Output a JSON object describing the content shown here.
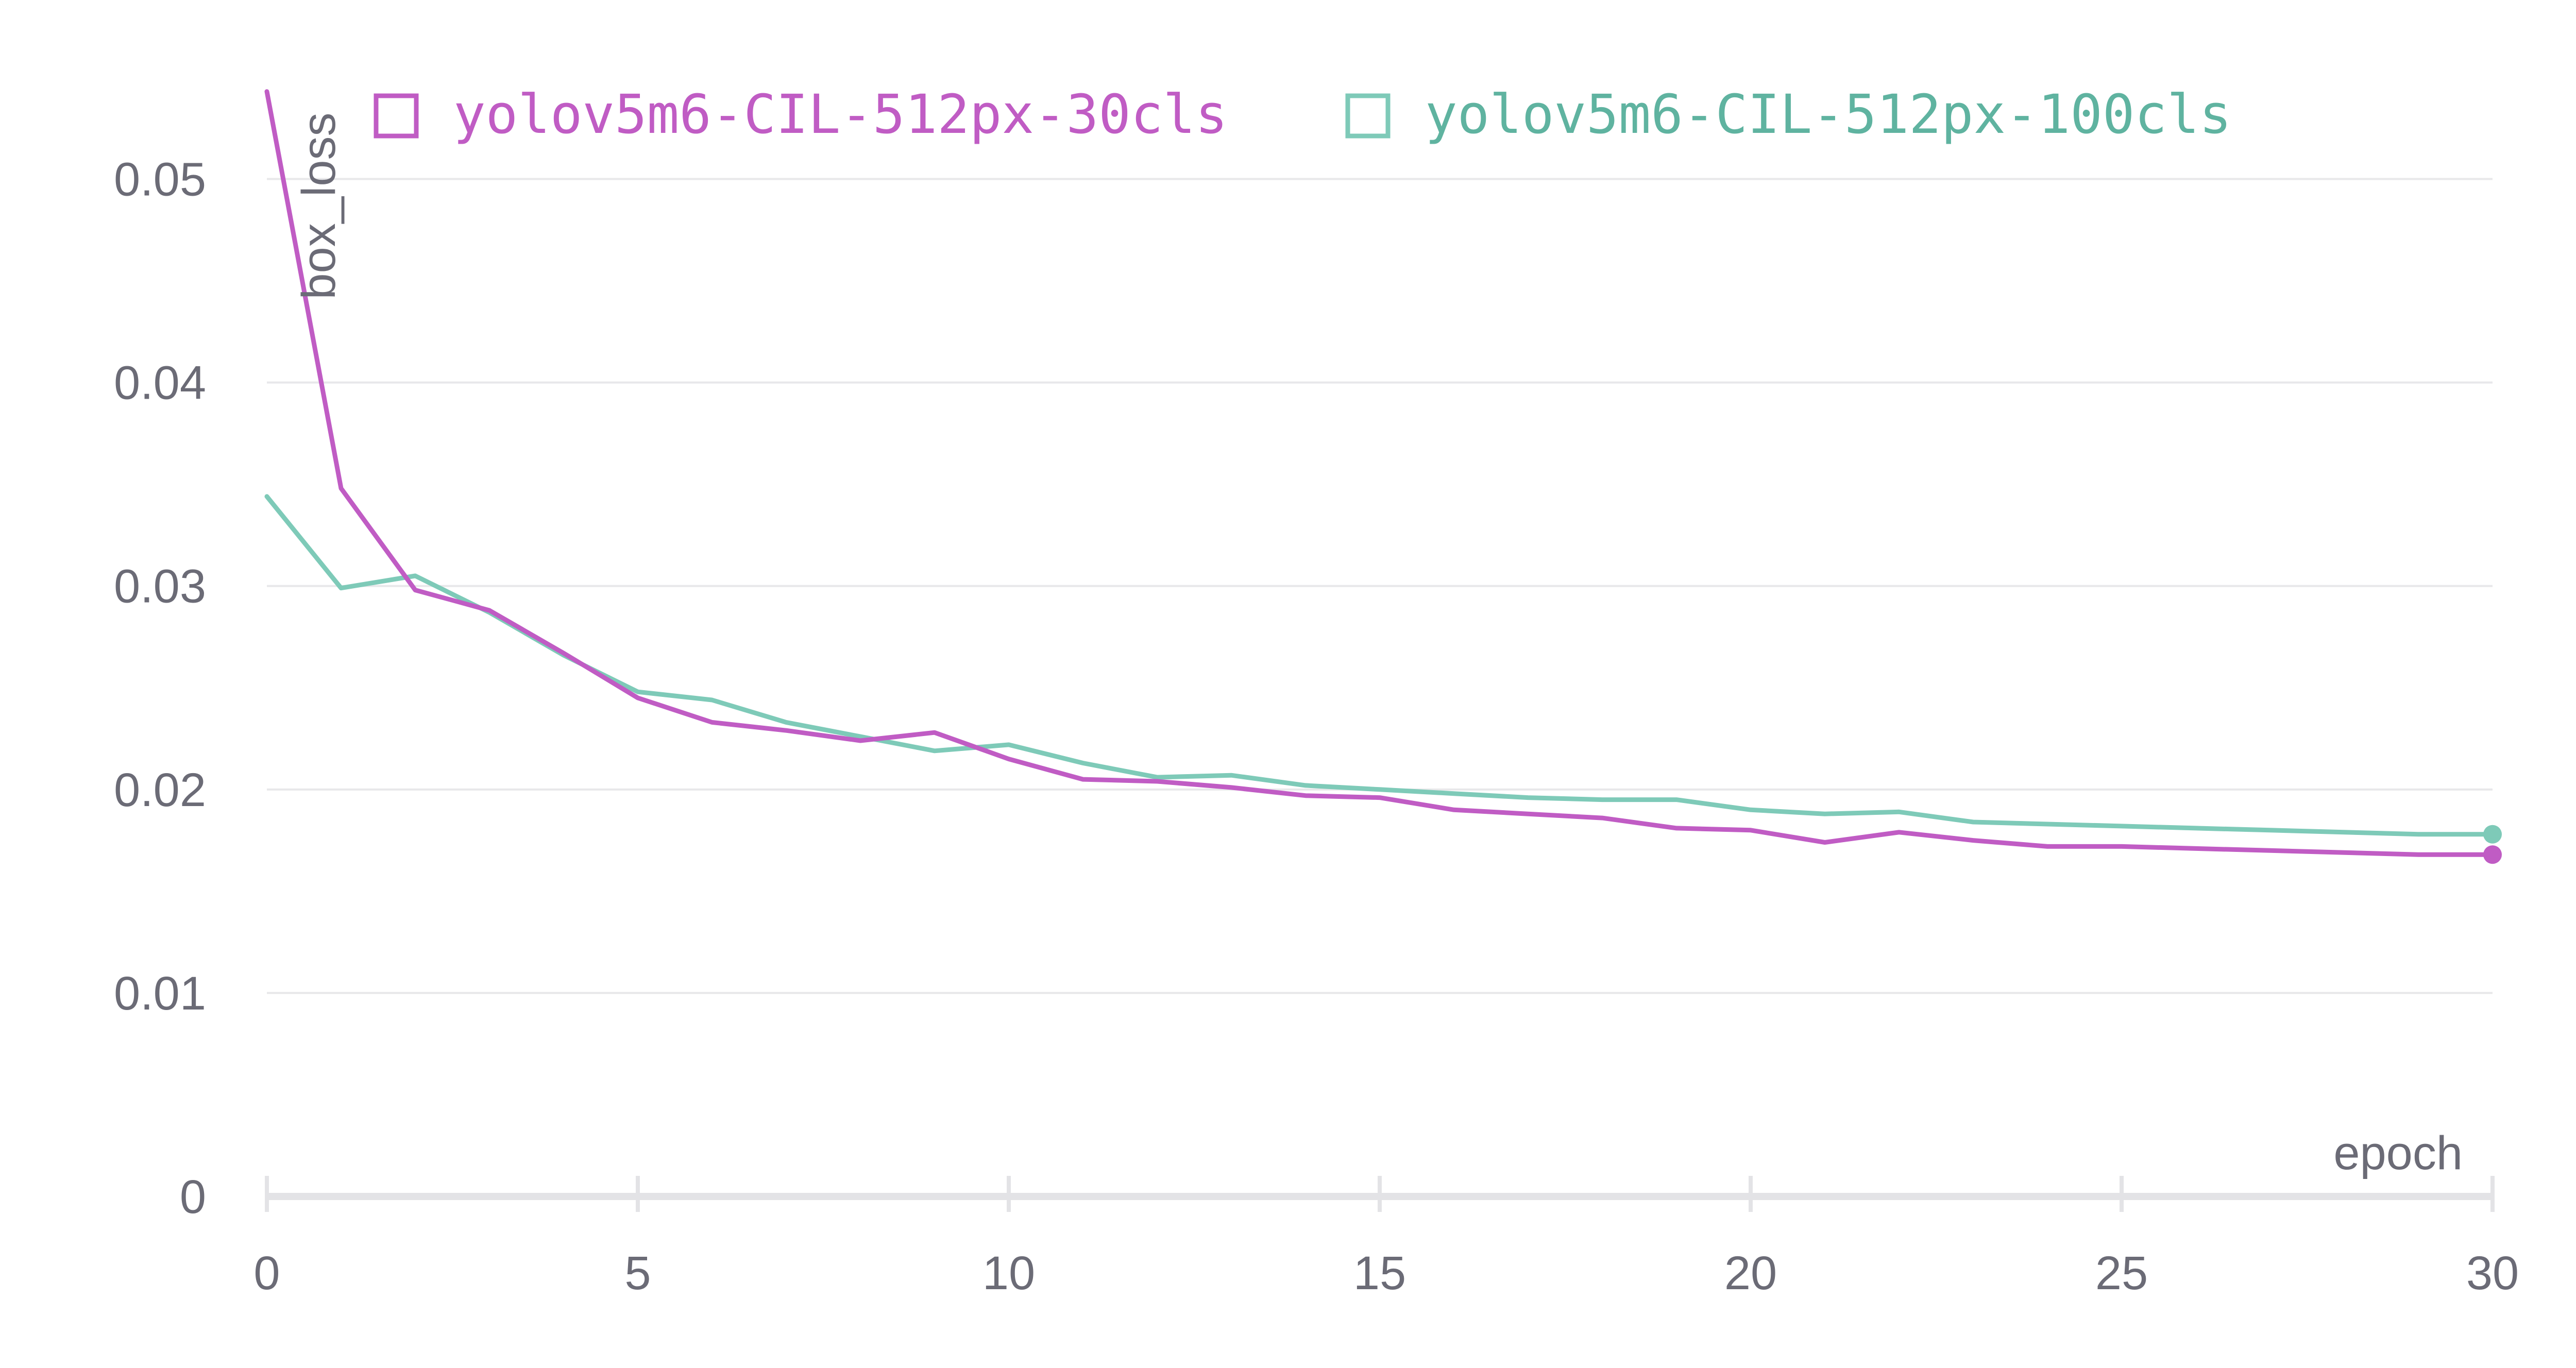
{
  "chart_data": {
    "type": "line",
    "title": "",
    "xlabel": "epoch",
    "ylabel": "box_loss",
    "xlim": [
      0,
      30
    ],
    "ylim": [
      0,
      0.055
    ],
    "xticks": [
      0,
      5,
      10,
      15,
      20,
      25,
      30
    ],
    "yticks": [
      0,
      0.01,
      0.02,
      0.03,
      0.04,
      0.05
    ],
    "ytick_labels": [
      "0",
      "0.01",
      "0.02",
      "0.03",
      "0.04",
      "0.05"
    ],
    "grid": true,
    "legend_position": "top",
    "x": [
      0,
      1,
      2,
      3,
      4,
      5,
      6,
      7,
      8,
      9,
      10,
      11,
      12,
      13,
      14,
      15,
      16,
      17,
      18,
      19,
      20,
      21,
      22,
      23,
      24,
      25,
      26,
      27,
      28,
      29,
      30
    ],
    "series": [
      {
        "name": "yolov5m6-CIL-512px-30cls",
        "color": "#c05cc4",
        "values": [
          0.0543,
          0.0348,
          0.0298,
          0.0288,
          0.0267,
          0.0245,
          0.0233,
          0.0229,
          0.0224,
          0.0228,
          0.0215,
          0.0205,
          0.0204,
          0.0201,
          0.0197,
          0.0196,
          0.019,
          0.0188,
          0.0186,
          0.0181,
          0.018,
          0.0174,
          0.0179,
          0.0175,
          0.0172,
          0.0172,
          0.0171,
          0.017,
          0.0169,
          0.0168,
          0.0168
        ]
      },
      {
        "name": "yolov5m6-CIL-512px-100cls",
        "color": "#7ecab8",
        "values": [
          0.0344,
          0.0299,
          0.0305,
          0.0287,
          0.0266,
          0.0248,
          0.0244,
          0.0233,
          0.0226,
          0.0219,
          0.0222,
          0.0213,
          0.0206,
          0.0207,
          0.0202,
          0.02,
          0.0198,
          0.0196,
          0.0195,
          0.0195,
          0.019,
          0.0188,
          0.0189,
          0.0184,
          0.0183,
          0.0182,
          0.0181,
          0.018,
          0.0179,
          0.0178,
          0.0178
        ]
      }
    ],
    "legend_text_colors": [
      "#c05cc4",
      "#5fb3a0"
    ]
  }
}
